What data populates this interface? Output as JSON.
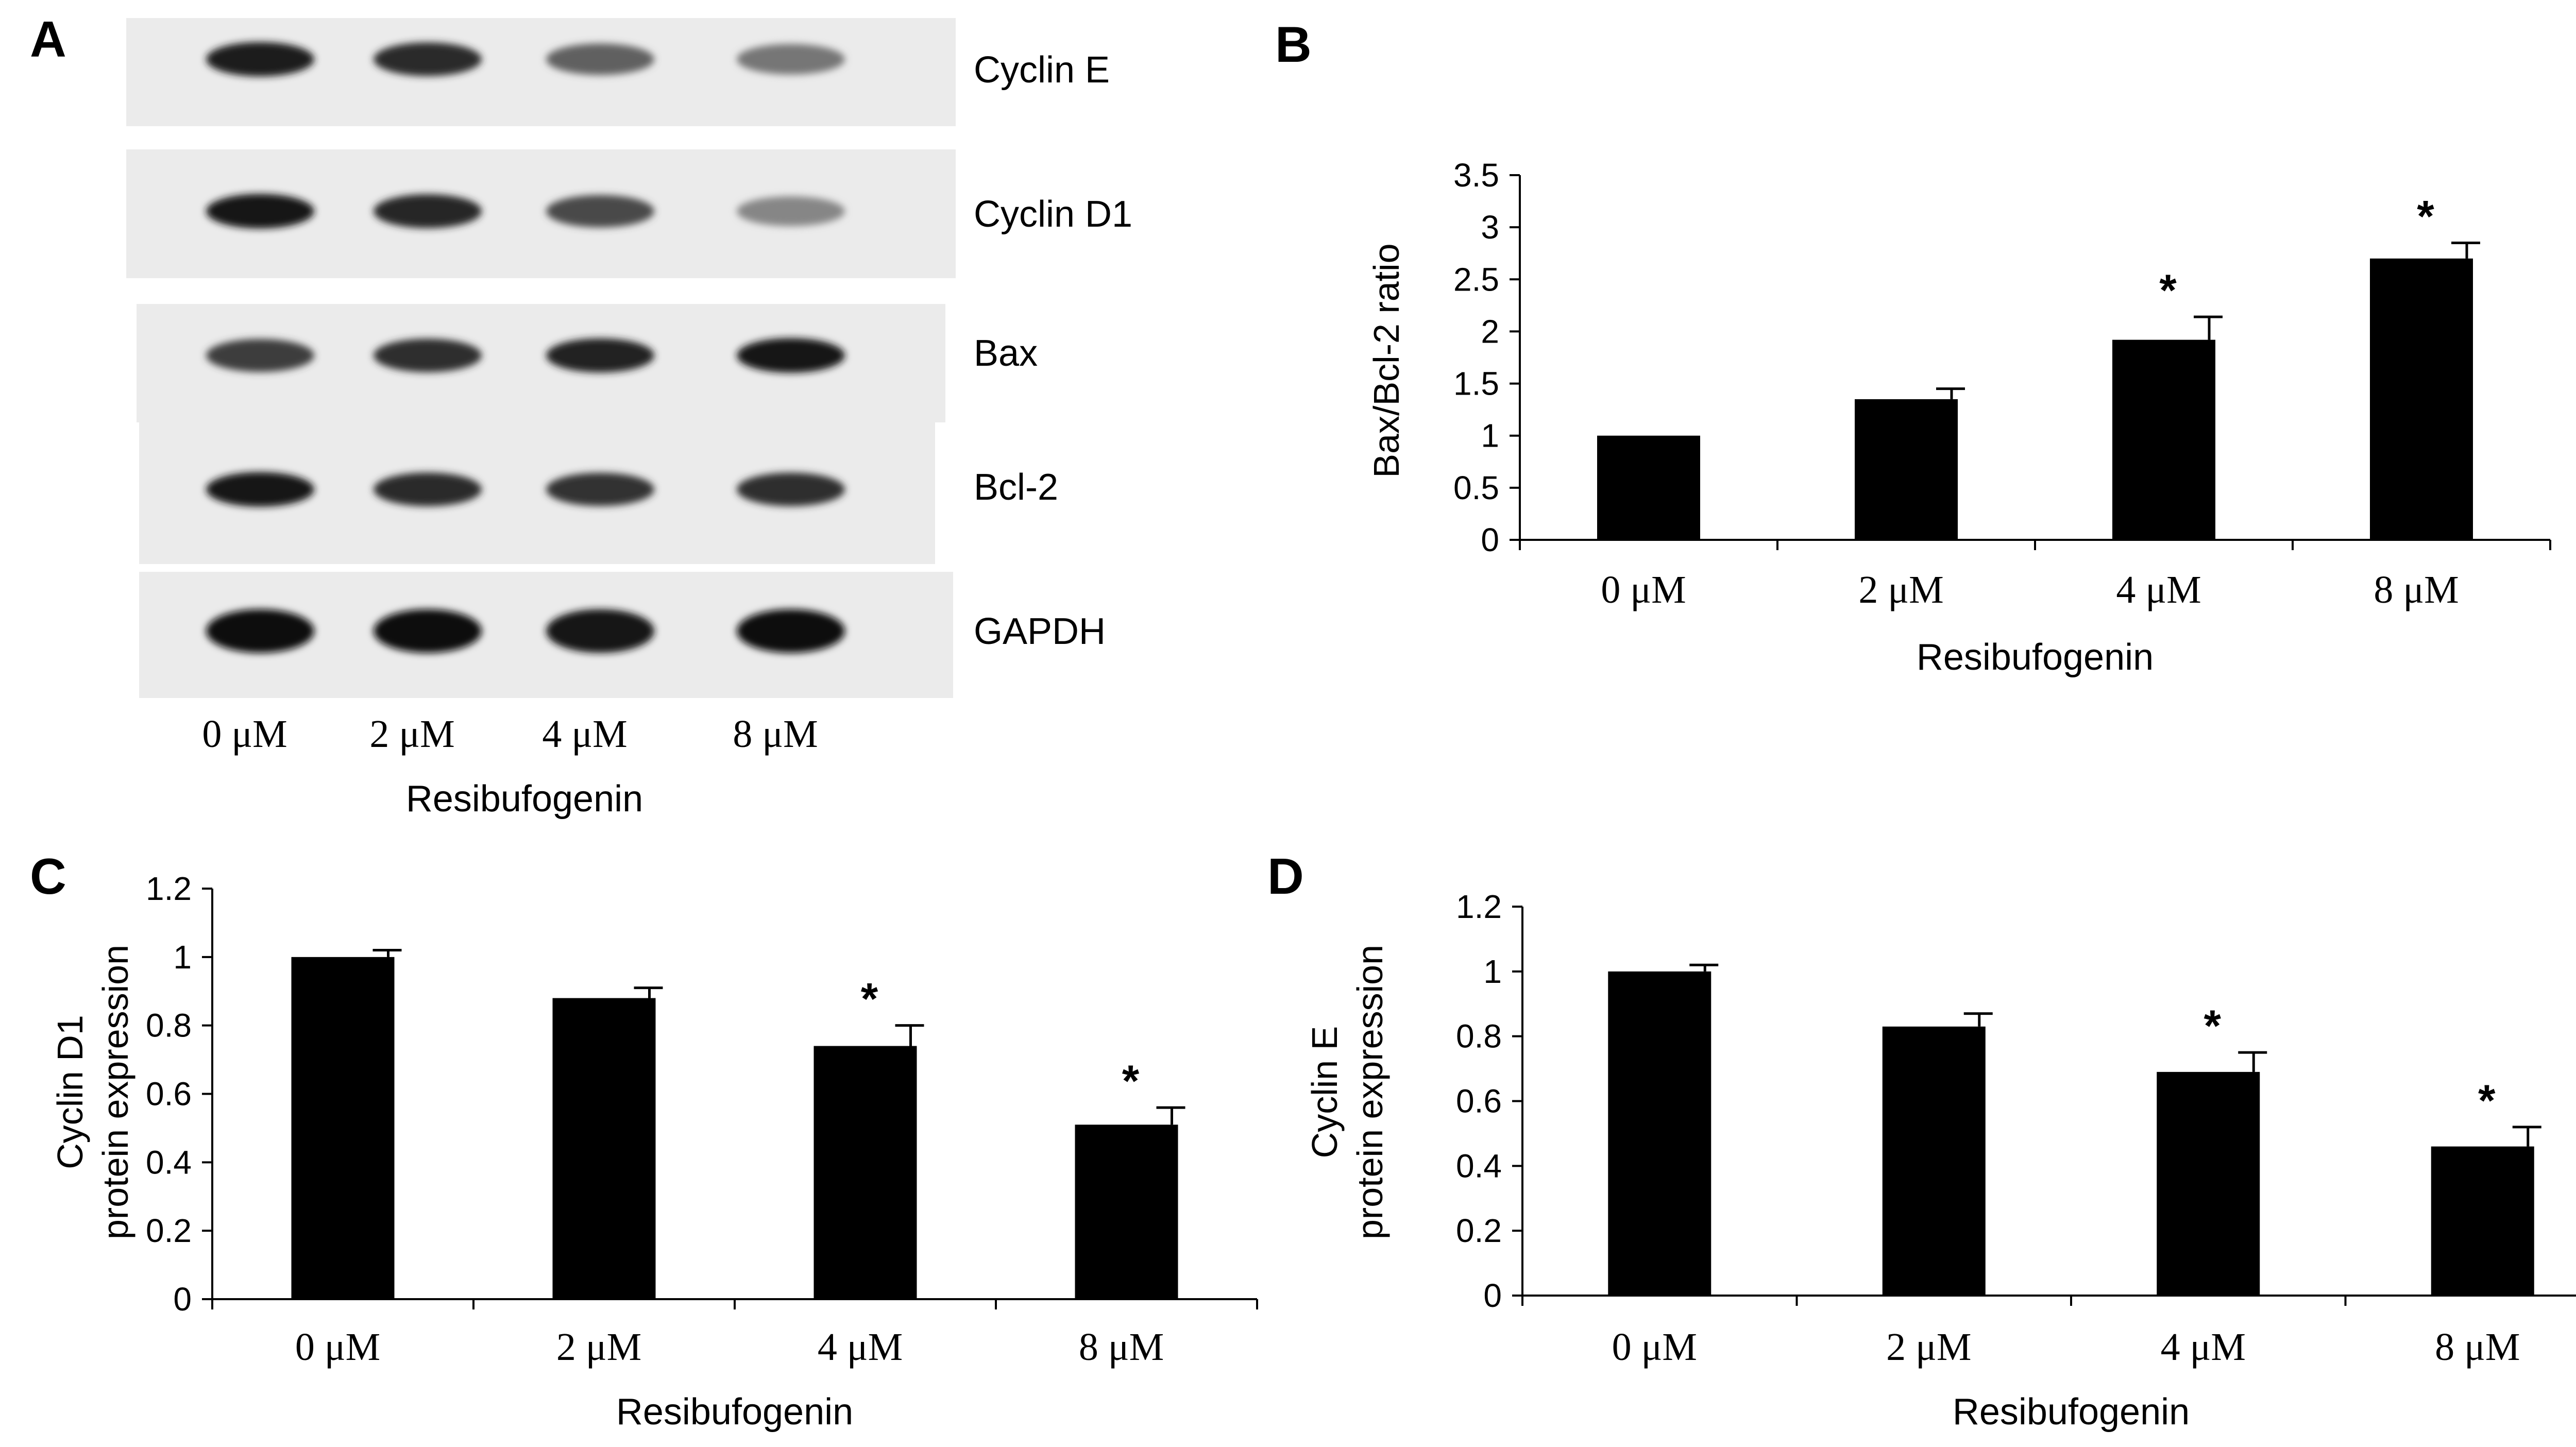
{
  "figure": {
    "western_blot": {
      "panel_letter": "A",
      "band_labels": [
        "Cyclin E",
        "Cyclin D1",
        "Bax",
        "Bcl-2",
        "GAPDH"
      ],
      "lane_labels": [
        "0 μM",
        "2 μM",
        "4 μM",
        "8 μM"
      ],
      "xlabel": "Resibufogenin",
      "band_intensity": [
        [
          0.92,
          0.85,
          0.62,
          0.52
        ],
        [
          0.95,
          0.88,
          0.72,
          0.45
        ],
        [
          0.78,
          0.84,
          0.9,
          0.95
        ],
        [
          0.95,
          0.86,
          0.82,
          0.84
        ],
        [
          0.97,
          0.97,
          0.96,
          0.97
        ]
      ]
    }
  },
  "chart_data": [
    {
      "panel": "B",
      "type": "bar",
      "categories": [
        "0 μM",
        "2 μM",
        "4 μM",
        "8 μM"
      ],
      "values": [
        1.0,
        1.35,
        1.92,
        2.7
      ],
      "errors": [
        0,
        0.1,
        0.22,
        0.15
      ],
      "significance": [
        "",
        "",
        "*",
        "*"
      ],
      "xlabel": "Resibufogenin",
      "ylabel": "Bax/Bcl-2 ratio",
      "ylabel_lines": [
        "Bax/Bcl-2 ratio"
      ],
      "ylim": [
        0,
        3.5
      ],
      "yticks": [
        0,
        0.5,
        1,
        1.5,
        2,
        2.5,
        3,
        3.5
      ],
      "ytick_labels": [
        "0",
        "0.5",
        "1",
        "1.5",
        "2",
        "2.5",
        "3",
        "3.5"
      ],
      "bar_color": "#000000",
      "grid": false
    },
    {
      "panel": "C",
      "type": "bar",
      "categories": [
        "0 μM",
        "2 μM",
        "4 μM",
        "8 μM"
      ],
      "values": [
        1.0,
        0.88,
        0.74,
        0.51
      ],
      "errors": [
        0.02,
        0.03,
        0.06,
        0.05
      ],
      "significance": [
        "",
        "",
        "*",
        "*"
      ],
      "xlabel": "Resibufogenin",
      "ylabel": "Cyclin D1 protein expression",
      "ylabel_lines": [
        "Cyclin D1",
        "protein expression"
      ],
      "ylim": [
        0,
        1.2
      ],
      "yticks": [
        0,
        0.2,
        0.4,
        0.6,
        0.8,
        1,
        1.2
      ],
      "ytick_labels": [
        "0",
        "0.2",
        "0.4",
        "0.6",
        "0.8",
        "1",
        "1.2"
      ],
      "bar_color": "#000000",
      "grid": false
    },
    {
      "panel": "D",
      "type": "bar",
      "categories": [
        "0 μM",
        "2 μM",
        "4 μM",
        "8 μM"
      ],
      "values": [
        1.0,
        0.83,
        0.69,
        0.46
      ],
      "errors": [
        0.02,
        0.04,
        0.06,
        0.06
      ],
      "significance": [
        "",
        "",
        "*",
        "*"
      ],
      "xlabel": "Resibufogenin",
      "ylabel": "Cyclin E protein expression",
      "ylabel_lines": [
        "Cyclin E",
        "protein expression"
      ],
      "ylim": [
        0,
        1.2
      ],
      "yticks": [
        0,
        0.2,
        0.4,
        0.6,
        0.8,
        1,
        1.2
      ],
      "ytick_labels": [
        "0",
        "0.2",
        "0.4",
        "0.6",
        "0.8",
        "1",
        "1.2"
      ],
      "bar_color": "#000000",
      "grid": false
    }
  ]
}
